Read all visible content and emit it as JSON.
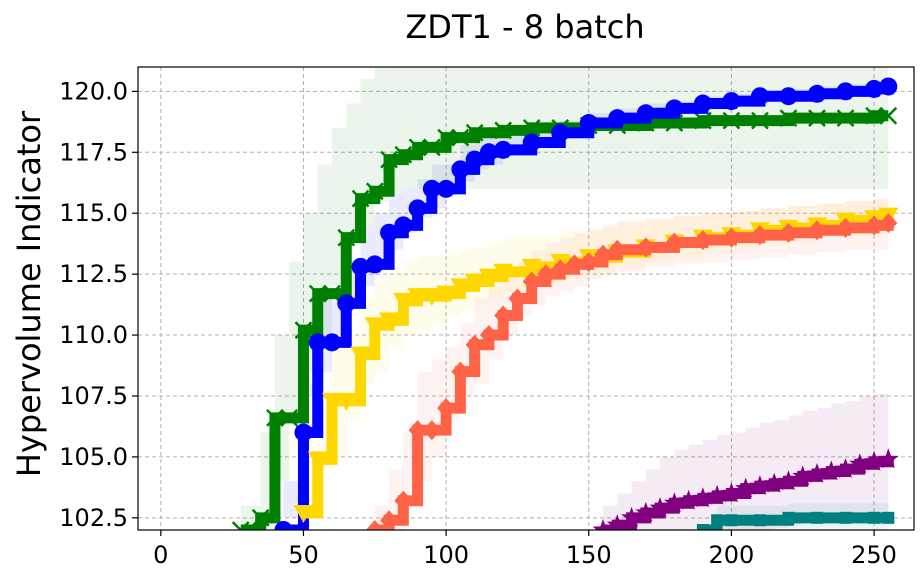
{
  "chart_data": {
    "type": "line",
    "title": "ZDT1 - 8 batch",
    "xlabel": "",
    "ylabel": "Hypervolume Indicator",
    "xlim": [
      -8,
      264
    ],
    "ylim": [
      102.0,
      121.0
    ],
    "grid": true,
    "x_ticks": [
      0,
      50,
      100,
      150,
      200,
      250
    ],
    "y_ticks": [
      102.5,
      105.0,
      107.5,
      110.0,
      112.5,
      115.0,
      117.5,
      120.0
    ],
    "x_tick_labels": [
      "0",
      "50",
      "100",
      "150",
      "200",
      "250"
    ],
    "y_tick_labels": [
      "102.5",
      "105.0",
      "107.5",
      "110.0",
      "112.5",
      "115.0",
      "117.5",
      "120.0"
    ],
    "series": [
      {
        "color": "#008000",
        "marker": "x",
        "x": [
          28,
          35,
          40,
          45,
          50,
          55,
          60,
          65,
          70,
          75,
          80,
          85,
          90,
          95,
          100,
          105,
          110,
          120,
          130,
          140,
          150,
          160,
          170,
          180,
          190,
          200,
          210,
          220,
          230,
          240,
          250,
          255
        ],
        "y": [
          102.0,
          102.5,
          106.6,
          106.6,
          110.2,
          111.7,
          111.7,
          114.0,
          115.6,
          115.9,
          117.2,
          117.4,
          117.7,
          117.7,
          118.1,
          118.1,
          118.3,
          118.4,
          118.5,
          118.5,
          118.6,
          118.6,
          118.7,
          118.7,
          118.8,
          118.8,
          118.8,
          118.9,
          118.9,
          118.9,
          119.0,
          119.0
        ],
        "band_lower": [
          102.0,
          102.0,
          102.0,
          104.0,
          106.5,
          108.5,
          110.0,
          112.0,
          114.0,
          114.5,
          115.5,
          115.8,
          116.0,
          116.0,
          116.0,
          116.0,
          116.0,
          116.0,
          116.0,
          116.0,
          116.0,
          116.0,
          116.0,
          116.0,
          116.0,
          116.0,
          116.0,
          116.0,
          116.0,
          116.0,
          116.0,
          116.0
        ],
        "band_upper": [
          103.0,
          106.0,
          110.0,
          113.0,
          115.0,
          117.0,
          118.5,
          119.5,
          120.5,
          121.0,
          121.0,
          121.0,
          121.0,
          121.0,
          121.0,
          121.0,
          121.0,
          121.0,
          121.0,
          121.0,
          121.0,
          121.0,
          121.0,
          121.0,
          121.0,
          121.0,
          121.0,
          121.0,
          121.0,
          121.0,
          121.0,
          121.0
        ]
      },
      {
        "color": "#0000ff",
        "marker": "o",
        "x": [
          43,
          50,
          55,
          60,
          65,
          70,
          75,
          80,
          85,
          90,
          95,
          100,
          105,
          110,
          115,
          120,
          130,
          140,
          150,
          160,
          170,
          180,
          190,
          200,
          210,
          220,
          230,
          240,
          250,
          255
        ],
        "y": [
          102.0,
          106.0,
          109.7,
          109.7,
          111.3,
          112.8,
          112.9,
          114.2,
          114.5,
          115.2,
          116.0,
          116.0,
          116.8,
          117.2,
          117.5,
          117.6,
          117.9,
          118.3,
          118.7,
          118.9,
          119.1,
          119.3,
          119.5,
          119.6,
          119.8,
          119.8,
          119.9,
          120.0,
          120.1,
          120.2
        ],
        "band_lower": [
          102.0,
          104.0,
          107.5,
          108.5,
          110.0,
          111.5,
          112.0,
          113.0,
          113.5,
          114.2,
          114.8,
          115.2,
          115.8,
          116.3,
          116.8,
          117.0,
          117.4,
          117.8,
          118.2,
          118.5,
          118.8,
          119.0,
          119.2,
          119.3,
          119.5,
          119.6,
          119.7,
          119.8,
          119.9,
          120.0
        ],
        "band_upper": [
          102.5,
          108.0,
          111.5,
          111.5,
          113.0,
          114.5,
          115.0,
          115.8,
          116.0,
          116.4,
          117.0,
          117.0,
          117.8,
          118.1,
          118.3,
          118.4,
          118.5,
          118.8,
          119.1,
          119.3,
          119.5,
          119.6,
          119.8,
          119.9,
          120.0,
          120.1,
          120.2,
          120.3,
          120.4,
          120.4
        ]
      },
      {
        "color": "#ffd700",
        "marker": "v",
        "x": [
          50,
          55,
          60,
          65,
          70,
          75,
          80,
          85,
          90,
          95,
          100,
          105,
          110,
          115,
          120,
          130,
          140,
          150,
          160,
          170,
          180,
          190,
          200,
          210,
          220,
          230,
          240,
          250,
          255
        ],
        "y": [
          102.7,
          104.9,
          107.3,
          107.3,
          109.2,
          110.4,
          110.6,
          111.4,
          111.6,
          111.6,
          111.7,
          112.0,
          112.2,
          112.4,
          112.6,
          112.8,
          113.0,
          113.2,
          113.4,
          113.6,
          113.8,
          114.0,
          114.1,
          114.3,
          114.4,
          114.5,
          114.7,
          114.8,
          114.9
        ],
        "band_lower": [
          102.0,
          102.5,
          104.5,
          105.0,
          106.5,
          108.0,
          108.5,
          109.5,
          110.0,
          110.2,
          110.5,
          110.8,
          111.0,
          111.3,
          111.5,
          111.8,
          112.0,
          112.3,
          112.5,
          112.8,
          113.0,
          113.2,
          113.4,
          113.5,
          113.7,
          113.8,
          114.0,
          114.1,
          114.2
        ],
        "band_upper": [
          104.0,
          107.0,
          109.5,
          110.0,
          111.5,
          112.2,
          112.5,
          113.0,
          113.2,
          113.2,
          113.3,
          113.5,
          113.6,
          113.8,
          114.0,
          114.1,
          114.3,
          114.4,
          114.6,
          114.7,
          114.9,
          115.0,
          115.1,
          115.2,
          115.3,
          115.4,
          115.5,
          115.6,
          115.6
        ]
      },
      {
        "color": "#ff6347",
        "marker": "D",
        "x": [
          75,
          80,
          85,
          90,
          95,
          100,
          105,
          110,
          115,
          120,
          125,
          130,
          135,
          140,
          145,
          150,
          155,
          160,
          170,
          180,
          190,
          200,
          210,
          220,
          230,
          240,
          250,
          255
        ],
        "y": [
          102.0,
          102.4,
          103.2,
          106.1,
          106.1,
          107.0,
          108.5,
          109.6,
          110.0,
          110.8,
          111.5,
          112.2,
          112.5,
          112.7,
          112.9,
          113.0,
          113.3,
          113.5,
          113.6,
          113.8,
          113.9,
          114.0,
          114.1,
          114.2,
          114.3,
          114.4,
          114.5,
          114.6
        ],
        "band_lower": [
          102.0,
          102.0,
          102.0,
          103.5,
          104.0,
          105.0,
          106.5,
          107.5,
          108.0,
          109.0,
          110.0,
          110.8,
          111.2,
          111.6,
          111.8,
          112.0,
          112.3,
          112.5,
          112.6,
          112.8,
          112.9,
          113.0,
          113.1,
          113.2,
          113.3,
          113.4,
          113.5,
          113.5
        ],
        "band_upper": [
          103.0,
          104.5,
          106.0,
          108.5,
          109.0,
          109.5,
          110.5,
          111.5,
          112.0,
          112.5,
          113.0,
          113.5,
          113.8,
          114.0,
          114.2,
          114.3,
          114.5,
          114.7,
          114.8,
          114.9,
          115.0,
          115.1,
          115.2,
          115.3,
          115.4,
          115.5,
          115.6,
          115.6
        ]
      },
      {
        "color": "#800080",
        "marker": "*",
        "x": [
          155,
          160,
          165,
          170,
          175,
          180,
          185,
          190,
          195,
          200,
          205,
          210,
          215,
          220,
          225,
          230,
          235,
          240,
          245,
          250,
          255
        ],
        "y": [
          102.0,
          102.2,
          102.5,
          102.7,
          102.9,
          103.1,
          103.2,
          103.3,
          103.4,
          103.5,
          103.7,
          103.8,
          103.9,
          104.0,
          104.2,
          104.3,
          104.4,
          104.5,
          104.7,
          104.8,
          104.9
        ],
        "band_lower": [
          102.0,
          102.0,
          102.0,
          102.0,
          102.0,
          102.0,
          102.0,
          102.0,
          102.0,
          102.0,
          102.0,
          102.0,
          102.0,
          102.1,
          102.2,
          102.3,
          102.3,
          102.4,
          102.5,
          102.5,
          102.6
        ],
        "band_upper": [
          103.0,
          103.5,
          104.0,
          104.5,
          105.0,
          105.3,
          105.5,
          105.7,
          105.9,
          106.0,
          106.2,
          106.4,
          106.5,
          106.7,
          106.9,
          107.0,
          107.2,
          107.3,
          107.5,
          107.6,
          107.7
        ]
      },
      {
        "color": "#008080",
        "marker": "s",
        "x": [
          190,
          195,
          200,
          210,
          220,
          230,
          240,
          250,
          255
        ],
        "y": [
          102.0,
          102.4,
          102.4,
          102.4,
          102.5,
          102.5,
          102.5,
          102.5,
          102.5
        ],
        "band_lower": [
          102.0,
          102.0,
          102.0,
          102.0,
          102.0,
          102.0,
          102.0,
          102.0,
          102.0
        ],
        "band_upper": [
          102.2,
          103.0,
          103.0,
          103.0,
          103.1,
          103.1,
          103.1,
          103.1,
          103.1
        ]
      }
    ]
  }
}
